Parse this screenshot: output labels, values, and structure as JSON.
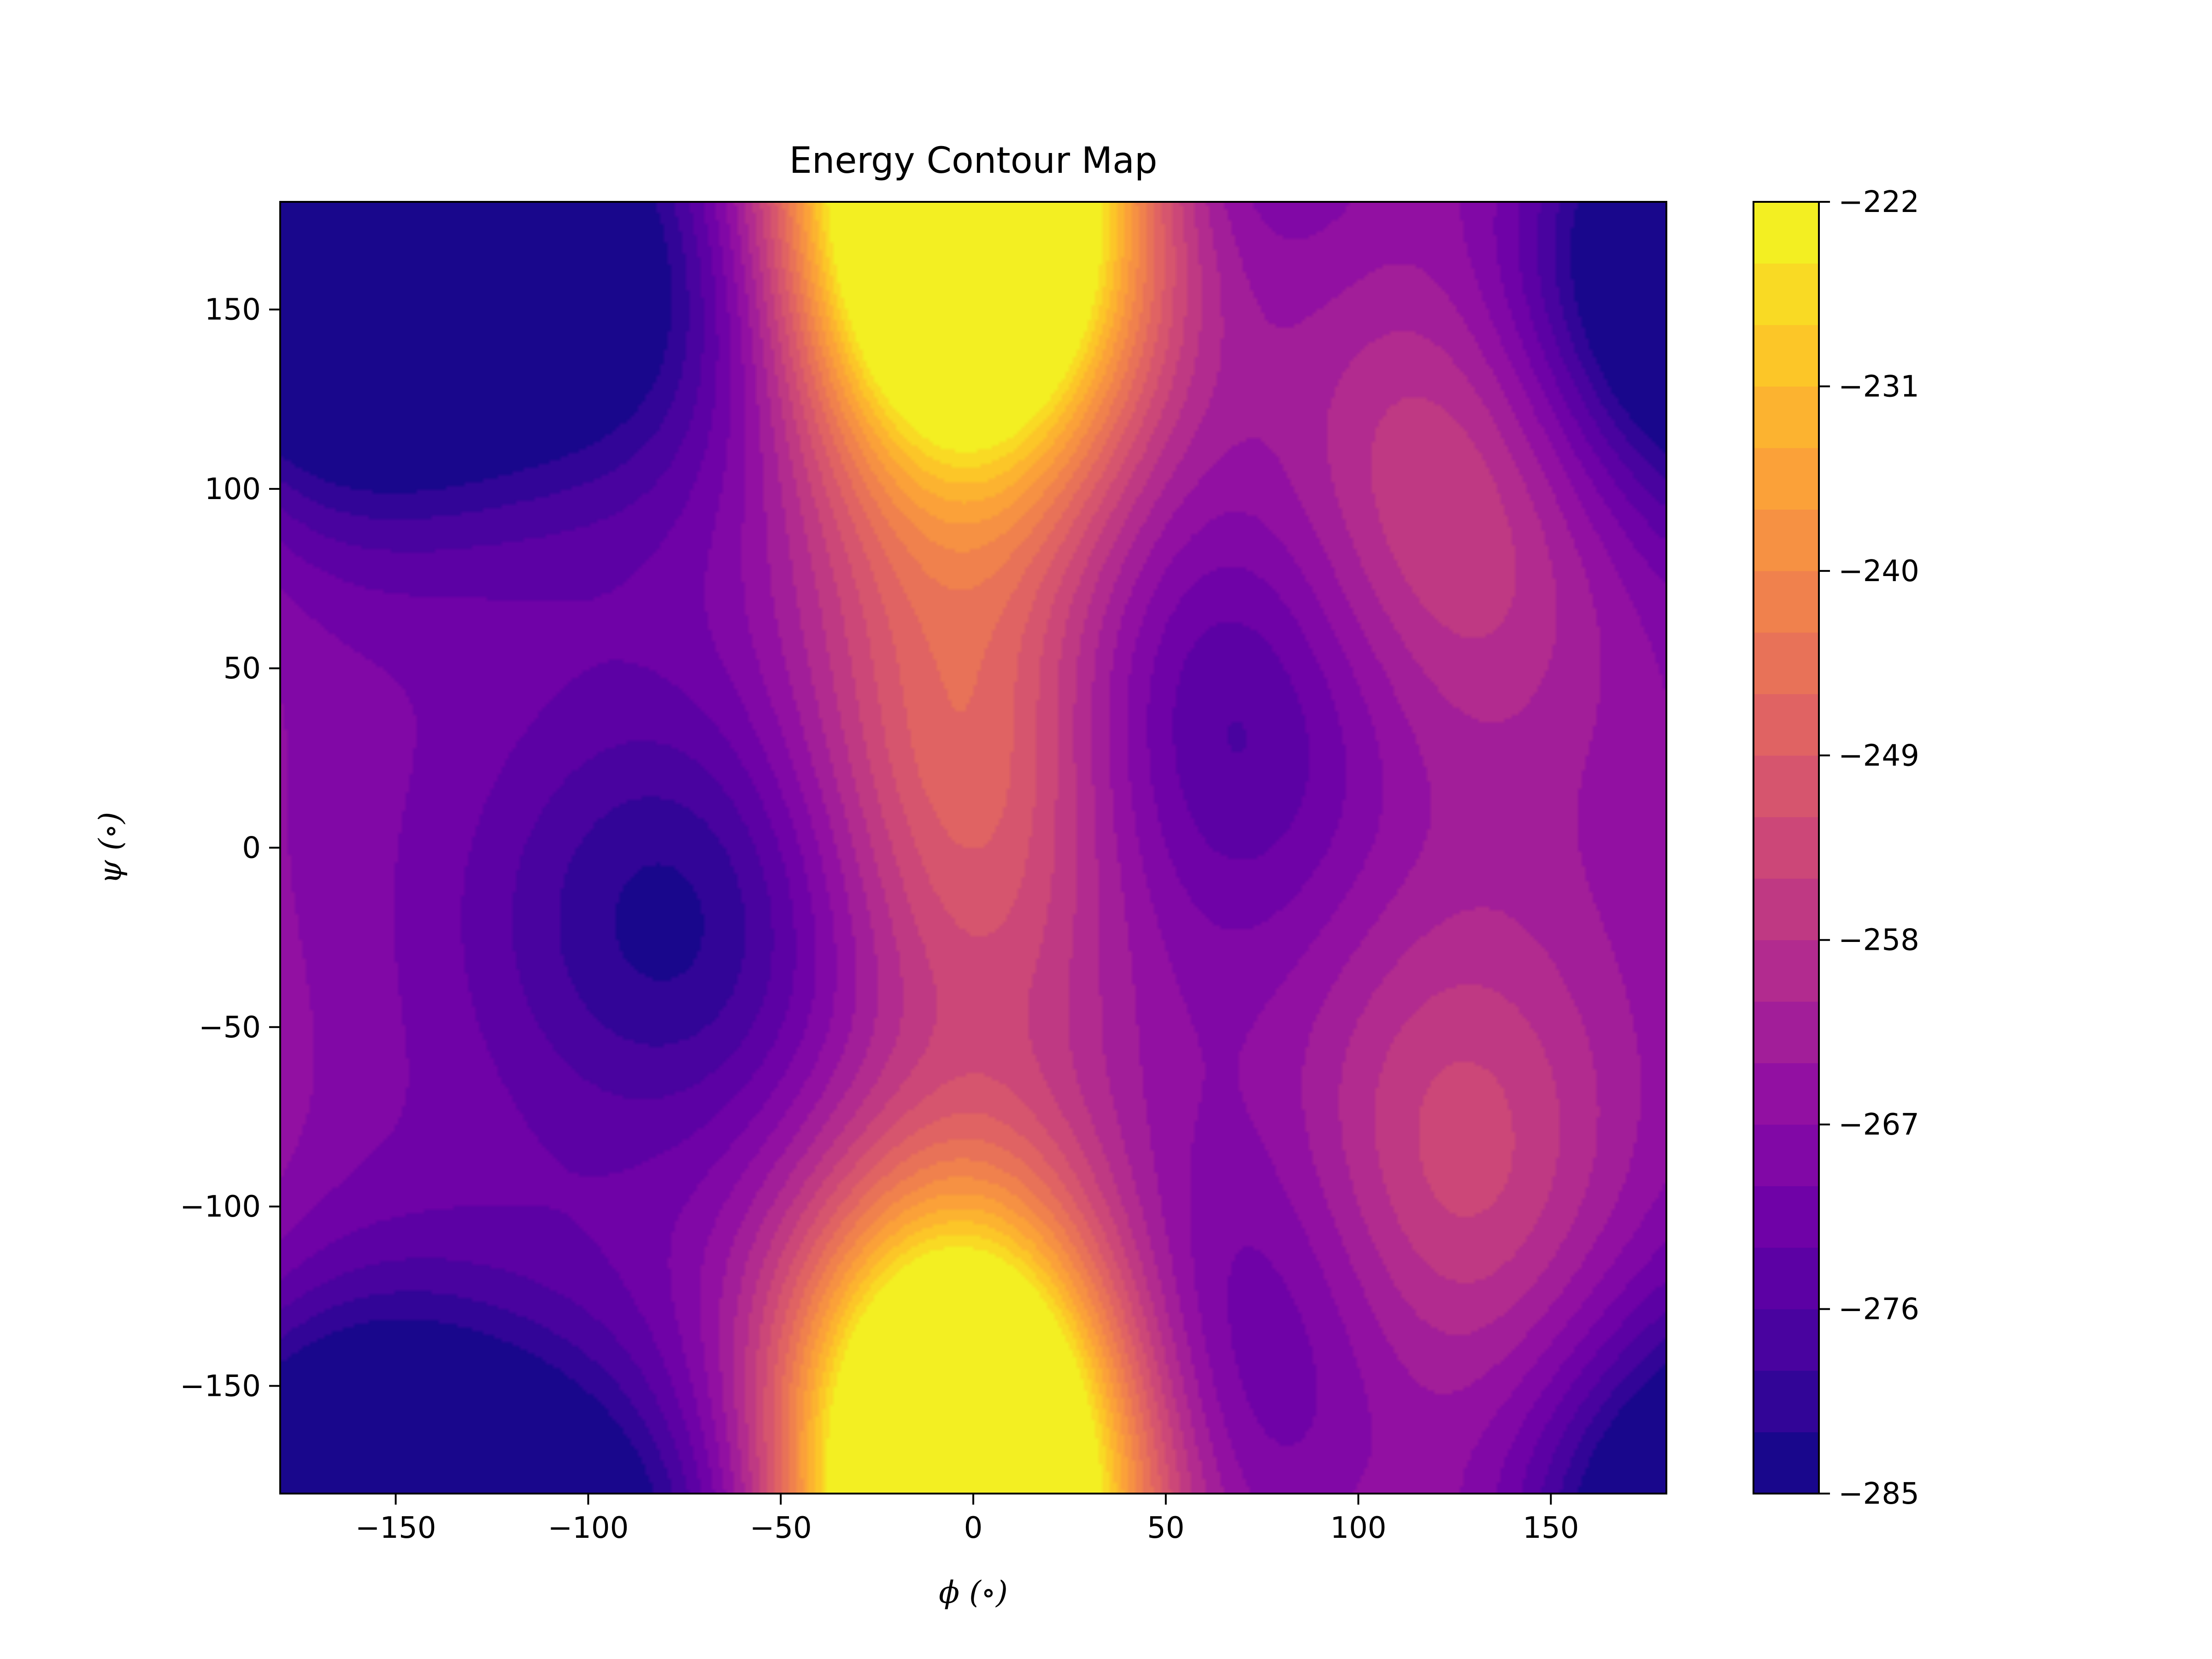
{
  "chart_data": {
    "type": "heatmap",
    "subtype": "filled-contour",
    "title": "Energy Contour Map",
    "xlabel": "ϕ (∘)",
    "ylabel": "ψ (∘)",
    "xlim": [
      -180,
      180
    ],
    "ylim": [
      -180,
      180
    ],
    "x_ticks": [
      -150,
      -100,
      -50,
      0,
      50,
      100,
      150
    ],
    "y_ticks": [
      -150,
      -100,
      -50,
      0,
      50,
      100,
      150
    ],
    "x_tick_labels": [
      "−150",
      "−100",
      "−50",
      "0",
      "50",
      "100",
      "150"
    ],
    "y_tick_labels": [
      "−150",
      "−100",
      "−50",
      "0",
      "50",
      "100",
      "150"
    ],
    "colormap": "plasma",
    "colorbar": {
      "min": -285,
      "max": -222,
      "levels": 21,
      "ticks": [
        -222,
        -231,
        -240,
        -249,
        -258,
        -267,
        -276,
        -285
      ],
      "tick_labels": [
        "−222",
        "−231",
        "−240",
        "−249",
        "−258",
        "−267",
        "−276",
        "−285"
      ]
    },
    "grid": false,
    "features": [
      {
        "kind": "maximum",
        "phi": 0,
        "psi": 180,
        "energy": -222
      },
      {
        "kind": "maximum",
        "phi": -5,
        "psi": -175,
        "energy": -223
      },
      {
        "kind": "maximum",
        "phi": 0,
        "psi": 20,
        "energy": -243
      },
      {
        "kind": "maximum",
        "phi": 125,
        "psi": 100,
        "energy": -251
      },
      {
        "kind": "maximum",
        "phi": 125,
        "psi": -90,
        "energy": -252
      },
      {
        "kind": "minimum",
        "phi": -155,
        "psi": 160,
        "energy": -284
      },
      {
        "kind": "minimum",
        "phi": -85,
        "psi": 155,
        "energy": -283
      },
      {
        "kind": "minimum",
        "phi": -75,
        "psi": -20,
        "energy": -284
      },
      {
        "kind": "minimum",
        "phi": 60,
        "psi": 35,
        "energy": -281
      },
      {
        "kind": "minimum",
        "phi": 65,
        "psi": -140,
        "energy": -279
      },
      {
        "kind": "minimum",
        "phi": 175,
        "psi": 150,
        "energy": -280
      },
      {
        "kind": "minimum",
        "phi": -150,
        "psi": -180,
        "energy": -280
      }
    ]
  }
}
